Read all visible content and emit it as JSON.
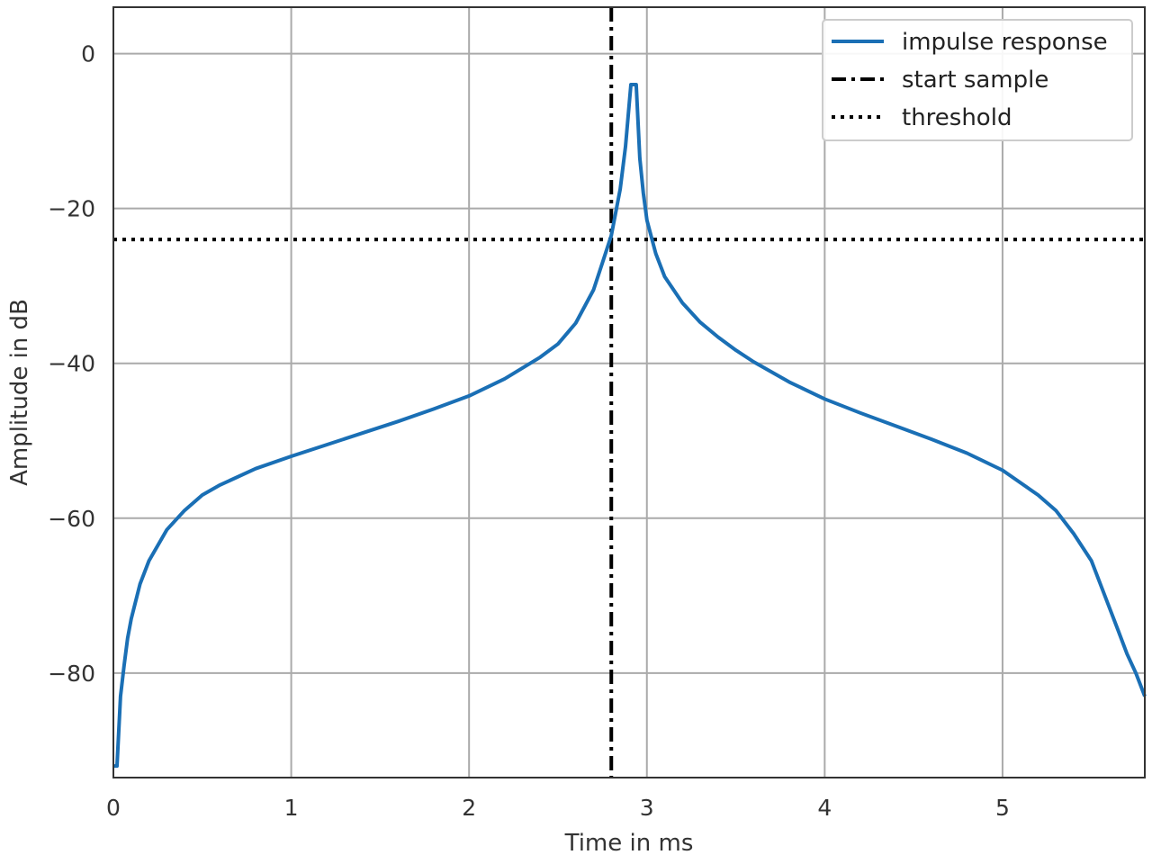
{
  "chart_data": {
    "type": "line",
    "xlabel": "Time in ms",
    "ylabel": "Amplitude in dB",
    "xlim": [
      0,
      5.8
    ],
    "ylim": [
      -93.5,
      6
    ],
    "x_ticks": [
      0,
      1,
      2,
      3,
      4,
      5
    ],
    "y_ticks": [
      0,
      -20,
      -40,
      -60,
      -80
    ],
    "y_tick_labels": [
      "0",
      "−20",
      "−40",
      "−60",
      "−80"
    ],
    "grid": true,
    "legend_position": "top-right",
    "legend": [
      {
        "label": "impulse response",
        "style": "solid",
        "color": "#1a6fb5"
      },
      {
        "label": "start sample",
        "style": "dashdot",
        "color": "#000000"
      },
      {
        "label": "threshold",
        "style": "dotted",
        "color": "#000000"
      }
    ],
    "series": [
      {
        "name": "impulse response",
        "color": "#1a6fb5",
        "x": [
          0.0,
          0.02,
          0.04,
          0.06,
          0.08,
          0.1,
          0.15,
          0.2,
          0.3,
          0.4,
          0.5,
          0.6,
          0.8,
          1.0,
          1.2,
          1.4,
          1.6,
          1.8,
          2.0,
          2.2,
          2.4,
          2.5,
          2.6,
          2.7,
          2.75,
          2.8,
          2.85,
          2.88,
          2.91,
          2.94,
          2.96,
          2.98,
          3.0,
          3.05,
          3.1,
          3.2,
          3.3,
          3.4,
          3.5,
          3.6,
          3.8,
          4.0,
          4.2,
          4.4,
          4.6,
          4.8,
          5.0,
          5.2,
          5.3,
          5.4,
          5.5,
          5.6,
          5.65,
          5.7,
          5.75,
          5.8
        ],
        "y": [
          -92,
          -92,
          -83,
          -79,
          -75.5,
          -73,
          -68.5,
          -65.5,
          -61.5,
          -59,
          -57,
          -55.7,
          -53.6,
          -52,
          -50.5,
          -49,
          -47.5,
          -45.9,
          -44.2,
          -42,
          -39.2,
          -37.5,
          -34.8,
          -30.5,
          -27,
          -23.5,
          -17.5,
          -12,
          -4,
          -4,
          -13.5,
          -18,
          -21.5,
          -25.8,
          -28.8,
          -32.2,
          -34.7,
          -36.6,
          -38.3,
          -39.8,
          -42.4,
          -44.6,
          -46.4,
          -48.1,
          -49.8,
          -51.6,
          -53.8,
          -57,
          -59,
          -62,
          -65.5,
          -71.5,
          -74.5,
          -77.5,
          -80,
          -83
        ]
      }
    ],
    "vlines": [
      {
        "name": "start sample",
        "x": 2.8,
        "style": "dashdot",
        "color": "#000000"
      }
    ],
    "hlines": [
      {
        "name": "threshold",
        "y": -24,
        "style": "dotted",
        "color": "#000000"
      }
    ]
  }
}
